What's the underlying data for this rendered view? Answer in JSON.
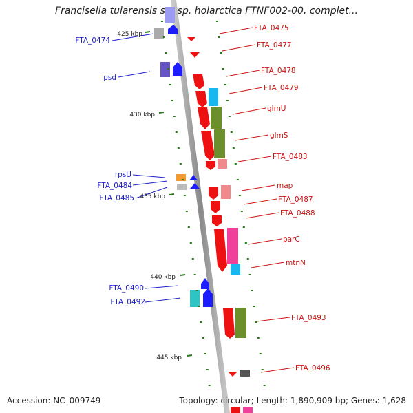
{
  "title": "Francisella tularensis subsp. holarctica FTNF002-00, complet...",
  "footer": {
    "accession": "Accession: NC_009749",
    "info": "Topology: circular; Length: 1,890,909 bp; Genes: 1,628"
  },
  "ticks": [
    "425 kbp",
    "430 kbp",
    "435 kbp",
    "440 kbp",
    "445 kbp"
  ],
  "genes": {
    "left": [
      "FTA_0474",
      "psd",
      "rpsU",
      "FTA_0484",
      "FTA_0485",
      "FTA_0490",
      "FTA_0492"
    ],
    "right": [
      "FTA_0475",
      "FTA_0477",
      "FTA_0478",
      "FTA_0479",
      "glmU",
      "glmS",
      "FTA_0483",
      "map",
      "FTA_0487",
      "FTA_0488",
      "parC",
      "mtnN",
      "FTA_0493",
      "FTA_0496"
    ]
  },
  "colors": {
    "left_label": "#1f1fc8",
    "right_label": "#cc1111",
    "backbone": "#888888",
    "tick": "#2a7a1a"
  }
}
